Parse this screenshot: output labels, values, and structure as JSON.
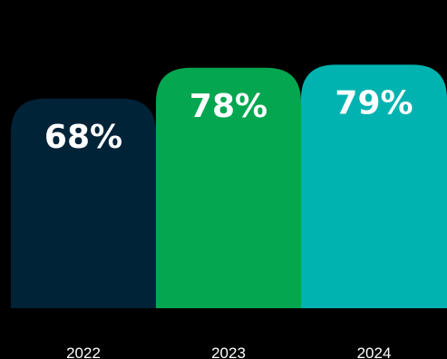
{
  "chart_data": {
    "type": "bar",
    "categories": [
      "2022",
      "2023",
      "2024"
    ],
    "values": [
      68,
      78,
      79
    ],
    "value_labels": [
      "68%",
      "78%",
      "79%"
    ],
    "unit": "%",
    "colors": [
      "#002338",
      "#04A650",
      "#00B3B0"
    ],
    "ylim": [
      0,
      85
    ],
    "grid": false,
    "legend": "none",
    "title": "",
    "xlabel": "",
    "ylabel": ""
  }
}
